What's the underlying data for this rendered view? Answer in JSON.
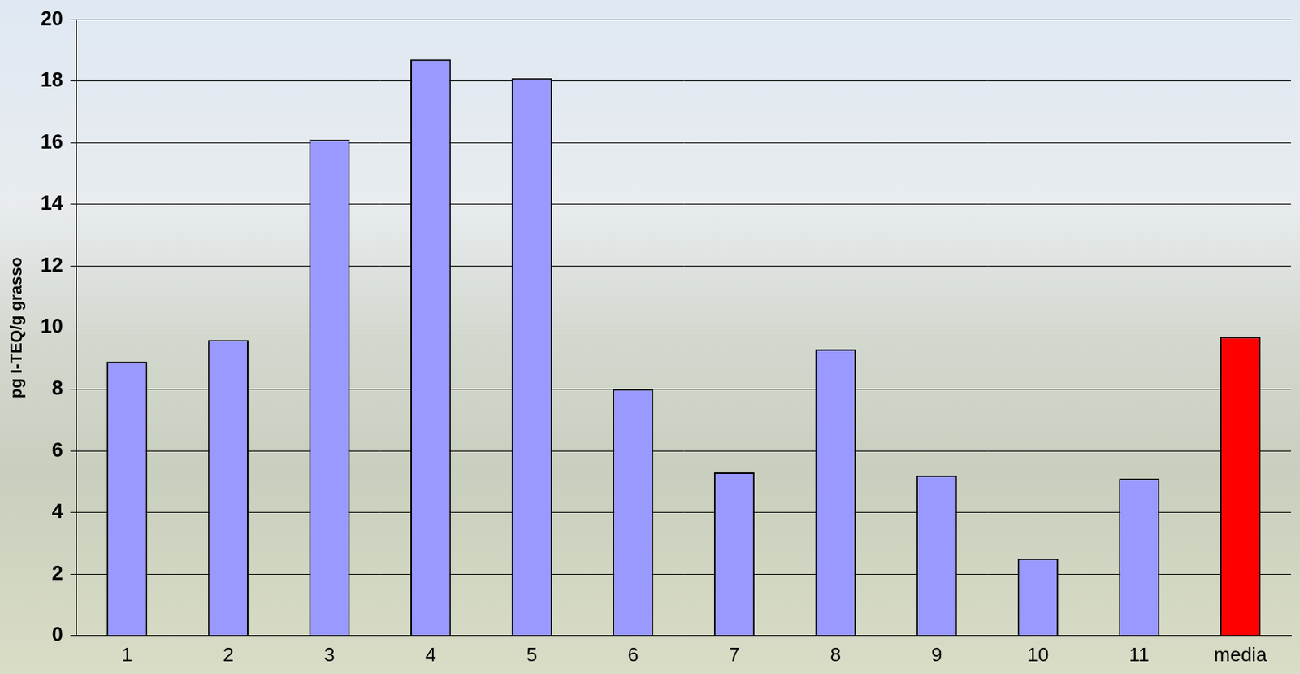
{
  "chart_data": {
    "type": "bar",
    "y_label": "pg I-TEQ/g grasso",
    "categories": [
      "1",
      "2",
      "3",
      "4",
      "5",
      "6",
      "7",
      "8",
      "9",
      "10",
      "11",
      "media"
    ],
    "values": [
      8.9,
      9.6,
      16.1,
      18.7,
      18.1,
      8.0,
      5.3,
      9.3,
      5.2,
      2.5,
      5.1,
      9.7
    ],
    "colors": [
      "#9999ff",
      "#9999ff",
      "#9999ff",
      "#9999ff",
      "#9999ff",
      "#9999ff",
      "#9999ff",
      "#9999ff",
      "#9999ff",
      "#9999ff",
      "#9999ff",
      "#ff0000"
    ],
    "ylim": [
      0,
      20
    ],
    "yticks": [
      0,
      2,
      4,
      6,
      8,
      10,
      12,
      14,
      16,
      18,
      20
    ],
    "grid": true
  }
}
